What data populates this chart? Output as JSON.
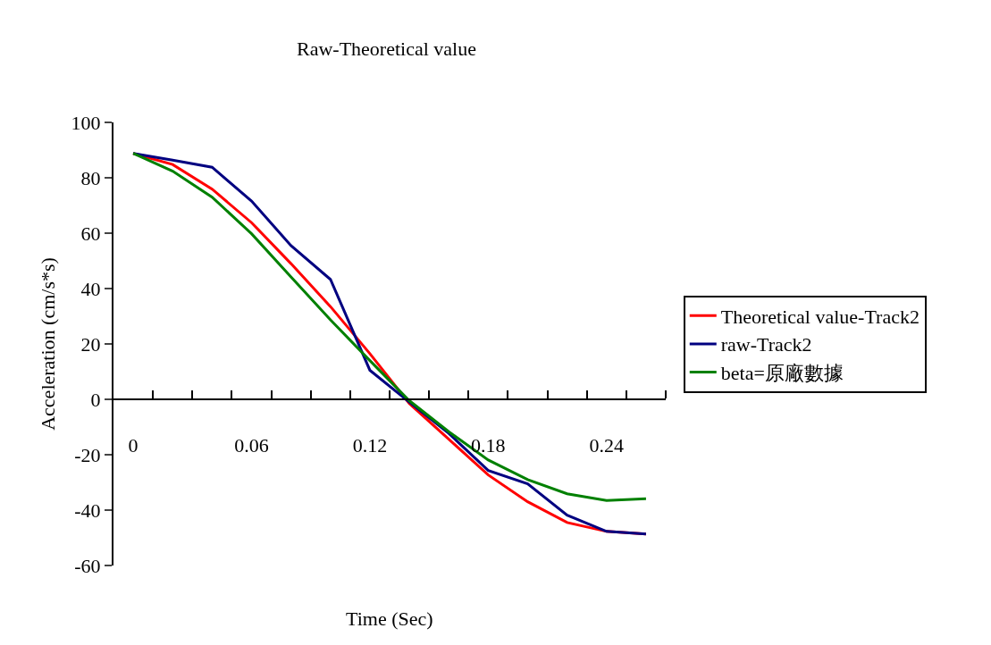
{
  "chart_data": {
    "type": "line",
    "title": "Raw-Theoretical value",
    "xlabel": "Time (Sec)",
    "ylabel": "Acceleration (cm/s*s)",
    "x": [
      0,
      0.02,
      0.04,
      0.06,
      0.08,
      0.1,
      0.12,
      0.14,
      0.16,
      0.18,
      0.2,
      0.22,
      0.24,
      0.26
    ],
    "series": [
      {
        "name": "Theoretical value-Track2",
        "color": "#ff0000",
        "values": [
          88.8,
          84.8,
          75.9,
          63.8,
          49,
          33.5,
          16.5,
          -1.5,
          -14.4,
          -27.3,
          -37,
          -44.5,
          -47.7,
          -48.6
        ]
      },
      {
        "name": "raw-Track2",
        "color": "#000080",
        "values": [
          88.8,
          86.4,
          83.8,
          71.6,
          55.5,
          43.3,
          10.5,
          -1,
          -12.3,
          -25.7,
          -30.5,
          -41.8,
          -47.7,
          -48.6
        ]
      },
      {
        "name": "beta=原廠數據",
        "color": "#008000",
        "values": [
          88.8,
          82.4,
          73,
          59.8,
          44.2,
          28.7,
          14,
          -0.5,
          -11.7,
          -21.9,
          -29,
          -34.1,
          -36.5,
          -35.9
        ]
      }
    ],
    "xlim": [
      -0.01,
      0.27
    ],
    "xticks": [
      0,
      0.06,
      0.12,
      0.18,
      0.24,
      {
        "value": 0.01,
        "label": null
      },
      {
        "value": 0.03,
        "label": null
      },
      {
        "value": 0.05,
        "label": null
      },
      {
        "value": 0.07,
        "label": null
      },
      {
        "value": 0.09,
        "label": null
      },
      {
        "value": 0.11,
        "label": null
      },
      {
        "value": 0.13,
        "label": null
      },
      {
        "value": 0.15,
        "label": null
      },
      {
        "value": 0.17,
        "label": null
      },
      {
        "value": 0.19,
        "label": null
      },
      {
        "value": 0.21,
        "label": null
      },
      {
        "value": 0.23,
        "label": null
      },
      {
        "value": 0.25,
        "label": null
      },
      {
        "value": 0.27,
        "label": null
      }
    ],
    "ylim": [
      -60,
      100
    ],
    "yticks": [
      -60,
      -40,
      -20,
      0,
      20,
      40,
      60,
      80,
      100
    ],
    "legend": "right",
    "marker": "none",
    "line_style": "solid"
  }
}
